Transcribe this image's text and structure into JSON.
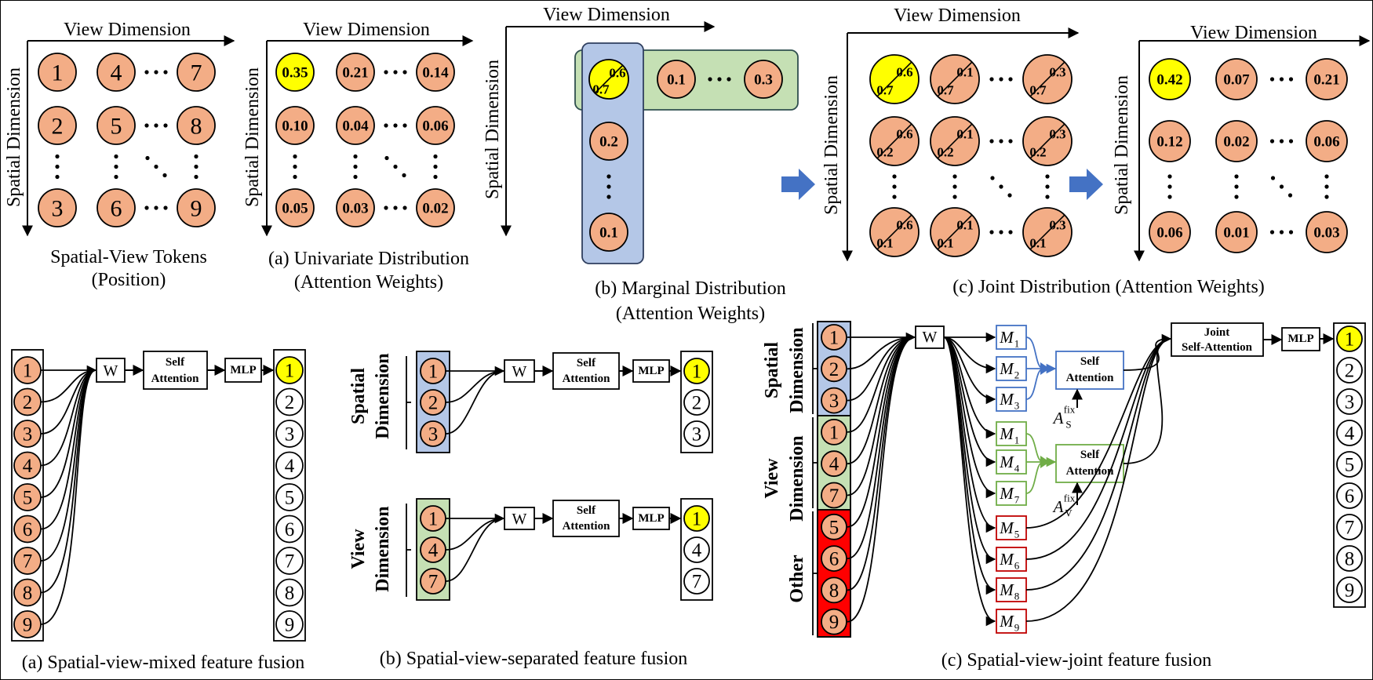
{
  "axes": {
    "view": "View Dimension",
    "spatial": "Spatial Dimension"
  },
  "top": {
    "tokens": {
      "caption_line1": "Spatial-View Tokens",
      "caption_line2": "(Position)",
      "grid": [
        [
          "1",
          "4",
          "7"
        ],
        [
          "2",
          "5",
          "8"
        ],
        [
          "3",
          "6",
          "9"
        ]
      ]
    },
    "univariate": {
      "caption_line1": "(a)  Univariate Distribution",
      "caption_line2": "(Attention Weights)",
      "grid": [
        [
          "0.35",
          "0.21",
          "0.14"
        ],
        [
          "0.10",
          "0.04",
          "0.06"
        ],
        [
          "0.05",
          "0.03",
          "0.02"
        ]
      ]
    },
    "marginal": {
      "caption_line1": "(b)  Marginal Distribution",
      "caption_line2": "(Attention Weights)",
      "corner_view": "0.6",
      "corner_spatial": "0.7",
      "view_row": [
        "0.1",
        "0.3"
      ],
      "spatial_col": [
        "0.2",
        "0.1"
      ]
    },
    "joint_pairs": {
      "caption": "(c)  Joint Distribution (Attention Weights)",
      "view_values": [
        "0.6",
        "0.1",
        "0.3"
      ],
      "spatial_values": [
        "0.7",
        "0.2",
        "0.1"
      ]
    },
    "joint": {
      "grid": [
        [
          "0.42",
          "0.07",
          "0.21"
        ],
        [
          "0.12",
          "0.02",
          "0.06"
        ],
        [
          "0.06",
          "0.01",
          "0.03"
        ]
      ]
    }
  },
  "bottom": {
    "mixed": {
      "caption": "(a) Spatial-view-mixed feature fusion",
      "inputs": [
        "1",
        "2",
        "3",
        "4",
        "5",
        "6",
        "7",
        "8",
        "9"
      ],
      "w": "W",
      "self_line1": "Self",
      "self_line2": "Attention",
      "mlp": "MLP",
      "outputs": [
        "1",
        "2",
        "3",
        "4",
        "5",
        "6",
        "7",
        "8",
        "9"
      ]
    },
    "separated": {
      "caption": "(b) Spatial-view-separated feature fusion",
      "spatial_label_line1": "Spatial",
      "spatial_label_line2": "Dimension",
      "view_label_line1": "View",
      "view_label_line2": "Dimension",
      "spatial_inputs": [
        "1",
        "2",
        "3"
      ],
      "view_inputs": [
        "1",
        "4",
        "7"
      ],
      "w": "W",
      "self_line1": "Self",
      "self_line2": "Attention",
      "mlp": "MLP",
      "spatial_outputs": [
        "1",
        "2",
        "3"
      ],
      "view_outputs": [
        "1",
        "4",
        "7"
      ]
    },
    "joint": {
      "caption": "(c) Spatial-view-joint feature fusion",
      "spatial_label_line1": "Spatial",
      "spatial_label_line2": "Dimension",
      "view_label_line1": "View",
      "view_label_line2": "Dimension",
      "other_label": "Other",
      "inputs": [
        "1",
        "2",
        "3",
        "1",
        "4",
        "7",
        "5",
        "6",
        "8",
        "9"
      ],
      "w": "W",
      "m_subscripts": [
        "1",
        "2",
        "3",
        "1",
        "4",
        "7",
        "5",
        "6",
        "8",
        "9"
      ],
      "m_letter": "M",
      "self_line1": "Self",
      "self_line2": "Attention",
      "a_letter": "A",
      "a_sub_spatial": "S",
      "a_sub_view": "V",
      "a_sup": "fix",
      "joint_line1": "Joint",
      "joint_line2": "Self-Attention",
      "mlp": "MLP",
      "outputs": [
        "1",
        "2",
        "3",
        "4",
        "5",
        "6",
        "7",
        "8",
        "9"
      ]
    }
  },
  "colors": {
    "token": "#f3ad86",
    "highlight": "#ffff00",
    "blue_fill": "#b4c7e7",
    "blue_stroke": "#4472c4",
    "green_fill": "#c5e0b4",
    "green_stroke": "#70ad47",
    "red_fill": "#ff0000",
    "red_stroke": "#c00000",
    "arrow_blue": "#4472c4"
  }
}
